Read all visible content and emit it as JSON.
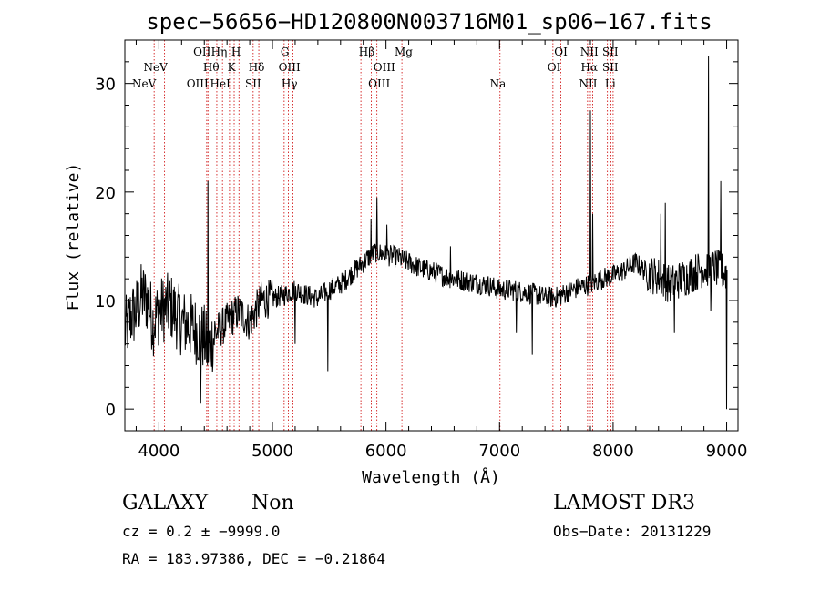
{
  "chart_data": {
    "type": "line",
    "title": "spec−56656−HD120800N003716M01_sp06−167.fits",
    "xlabel": "Wavelength (Å)",
    "ylabel": "Flux (relative)",
    "xlim": [
      3700,
      9100
    ],
    "ylim": [
      -2,
      34
    ],
    "xticks": [
      4000,
      5000,
      6000,
      7000,
      8000,
      9000
    ],
    "yticks": [
      0,
      10,
      20,
      30
    ],
    "colors": {
      "spectrum": "#000000",
      "lines": "#cc0000"
    },
    "spectrum_anchors": [
      [
        3700,
        7
      ],
      [
        3750,
        8.5
      ],
      [
        3800,
        9
      ],
      [
        3850,
        10.5
      ],
      [
        3900,
        10
      ],
      [
        3950,
        8
      ],
      [
        4000,
        9
      ],
      [
        4100,
        9.5
      ],
      [
        4200,
        8
      ],
      [
        4300,
        7.5
      ],
      [
        4400,
        6.5
      ],
      [
        4430,
        5.5
      ],
      [
        4500,
        7
      ],
      [
        4600,
        8
      ],
      [
        4700,
        9
      ],
      [
        4800,
        8
      ],
      [
        4900,
        10
      ],
      [
        5000,
        10.2
      ],
      [
        5100,
        10.5
      ],
      [
        5200,
        11
      ],
      [
        5300,
        10.5
      ],
      [
        5400,
        10.2
      ],
      [
        5500,
        11
      ],
      [
        5600,
        11.5
      ],
      [
        5700,
        12.5
      ],
      [
        5800,
        13.5
      ],
      [
        5900,
        14.5
      ],
      [
        6000,
        14.2
      ],
      [
        6100,
        14
      ],
      [
        6200,
        13.5
      ],
      [
        6300,
        13
      ],
      [
        6400,
        12.7
      ],
      [
        6500,
        12.3
      ],
      [
        6600,
        12
      ],
      [
        6700,
        11.8
      ],
      [
        6800,
        11.6
      ],
      [
        6900,
        11.4
      ],
      [
        7000,
        11
      ],
      [
        7100,
        11
      ],
      [
        7200,
        10.8
      ],
      [
        7300,
        10.6
      ],
      [
        7400,
        10.3
      ],
      [
        7500,
        10.3
      ],
      [
        7600,
        10.8
      ],
      [
        7700,
        11.2
      ],
      [
        7800,
        11.5
      ],
      [
        7900,
        12
      ],
      [
        8000,
        12.3
      ],
      [
        8100,
        12.8
      ],
      [
        8200,
        13.5
      ],
      [
        8300,
        12.5
      ],
      [
        8400,
        12.2
      ],
      [
        8500,
        11.5
      ],
      [
        8600,
        12
      ],
      [
        8700,
        12.5
      ],
      [
        8800,
        13
      ],
      [
        8900,
        13
      ],
      [
        9000,
        12.5
      ]
    ],
    "spectrum_features": [
      [
        4433,
        21
      ],
      [
        4430,
        4
      ],
      [
        4370,
        0.5
      ],
      [
        5490,
        3.5
      ],
      [
        5200,
        6
      ],
      [
        5920,
        19.5
      ],
      [
        5870,
        17.5
      ],
      [
        6010,
        17
      ],
      [
        6570,
        15
      ],
      [
        7150,
        7
      ],
      [
        7290,
        5
      ],
      [
        7800,
        27.5
      ],
      [
        7820,
        18
      ],
      [
        8420,
        18
      ],
      [
        8460,
        19
      ],
      [
        8540,
        7
      ],
      [
        8820,
        12.5
      ],
      [
        8840,
        32.5
      ],
      [
        8860,
        9
      ],
      [
        8950,
        21
      ],
      [
        9000,
        0
      ]
    ],
    "line_labels": [
      {
        "text": "NeV",
        "wavelength": 3870,
        "row": 3
      },
      {
        "text": "NeV",
        "wavelength": 3970,
        "row": 2
      },
      {
        "text": "OII",
        "wavelength": 4380,
        "row": 1
      },
      {
        "text": "OIII",
        "wavelength": 4340,
        "row": 3
      },
      {
        "text": "Hθ",
        "wavelength": 4460,
        "row": 2
      },
      {
        "text": "Hη",
        "wavelength": 4530,
        "row": 1
      },
      {
        "text": "HeI",
        "wavelength": 4540,
        "row": 3
      },
      {
        "text": "H",
        "wavelength": 4680,
        "row": 1
      },
      {
        "text": "K",
        "wavelength": 4640,
        "row": 2
      },
      {
        "text": "Hδ",
        "wavelength": 4860,
        "row": 2
      },
      {
        "text": "SII",
        "wavelength": 4830,
        "row": 3
      },
      {
        "text": "G",
        "wavelength": 5110,
        "row": 1
      },
      {
        "text": "OIII",
        "wavelength": 5150,
        "row": 2
      },
      {
        "text": "Hγ",
        "wavelength": 5150,
        "row": 3
      },
      {
        "text": "Hβ",
        "wavelength": 5830,
        "row": 1
      },
      {
        "text": "OIII",
        "wavelength": 5985,
        "row": 2
      },
      {
        "text": "OIII",
        "wavelength": 5940,
        "row": 3
      },
      {
        "text": "Mg",
        "wavelength": 6155,
        "row": 1
      },
      {
        "text": "Na",
        "wavelength": 6985,
        "row": 3
      },
      {
        "text": "OI",
        "wavelength": 7540,
        "row": 1
      },
      {
        "text": "OI",
        "wavelength": 7480,
        "row": 2
      },
      {
        "text": "NII",
        "wavelength": 7790,
        "row": 1
      },
      {
        "text": "Hα",
        "wavelength": 7790,
        "row": 2
      },
      {
        "text": "NII",
        "wavelength": 7780,
        "row": 3
      },
      {
        "text": "SII",
        "wavelength": 7975,
        "row": 1
      },
      {
        "text": "SII",
        "wavelength": 7975,
        "row": 2
      },
      {
        "text": "Li",
        "wavelength": 7975,
        "row": 3
      }
    ],
    "vlines": [
      3958,
      4050,
      4421,
      4432,
      4510,
      4560,
      4622,
      4663,
      4705,
      4830,
      4880,
      5103,
      5140,
      5180,
      5779,
      5870,
      5920,
      6140,
      7004,
      7470,
      7540,
      7775,
      7800,
      7820,
      7950,
      7980,
      8000
    ]
  },
  "info": {
    "class": "GALAXY",
    "subclass": "Non",
    "cz": "cz = 0.2 ± −9999.0",
    "radec": "RA = 183.97386, DEC =  −0.21864",
    "survey": "LAMOST DR3",
    "obsdate": "Obs−Date: 20131229"
  }
}
